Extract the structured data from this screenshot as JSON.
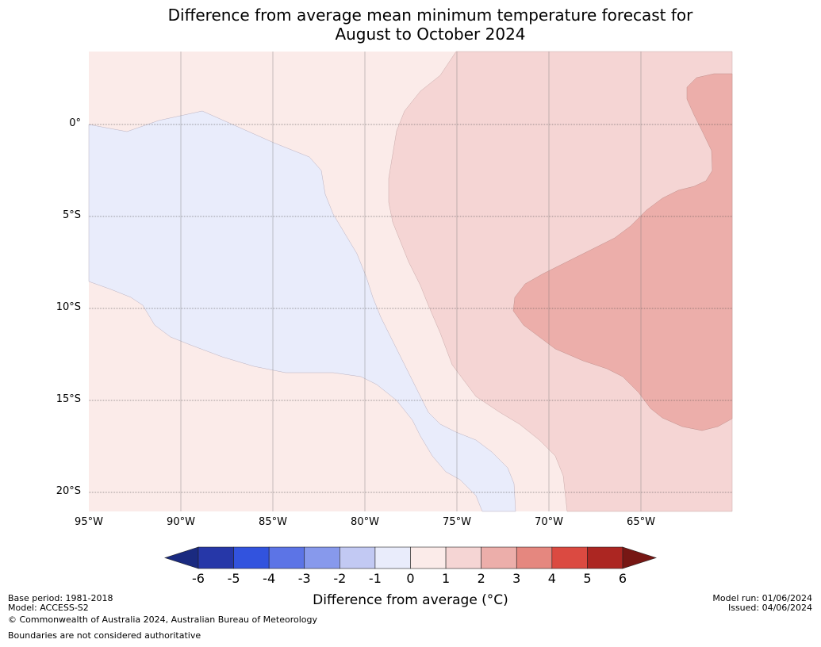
{
  "title": {
    "line1": "Difference from average mean minimum temperature forecast for",
    "line2": "August to October 2024"
  },
  "map": {
    "lat_labels": [
      "0°",
      "5°S",
      "10°S",
      "15°S",
      "20°S"
    ],
    "lon_labels": [
      "95°W",
      "90°W",
      "85°W",
      "80°W",
      "75°W",
      "70°W",
      "65°W"
    ]
  },
  "colorbar": {
    "ticks": [
      "-6",
      "-5",
      "-4",
      "-3",
      "-2",
      "-1",
      "0",
      "1",
      "2",
      "3",
      "4",
      "5",
      "6"
    ],
    "colors": [
      "#1a2a80",
      "#2637a8",
      "#3253de",
      "#5c74e6",
      "#8799ec",
      "#c2c9f3",
      "#e9ecfb",
      "#fbebe9",
      "#f5d5d4",
      "#ecaeaa",
      "#e5877f",
      "#db4a41",
      "#ac2622",
      "#771714"
    ],
    "label": "Difference from average (°C)"
  },
  "footer": {
    "base_period": "Base period: 1981-2018",
    "model": "Model: ACCESS-S2",
    "copyright": "© Commonwealth of Australia 2024, Australian Bureau of Meteorology",
    "boundaries": "Boundaries are not considered authoritative",
    "model_run": "Model run: 01/06/2024",
    "issued": "Issued: 04/06/2024"
  }
}
